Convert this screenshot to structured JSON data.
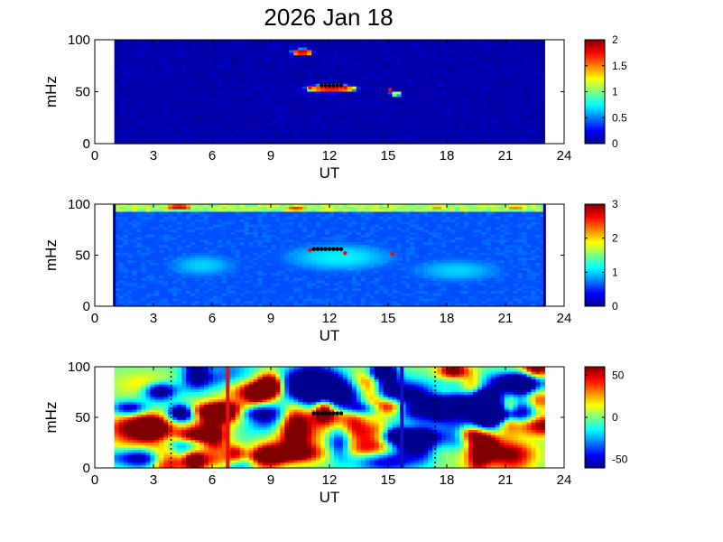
{
  "title": "2026 Jan 18",
  "colormap": [
    "#00008f",
    "#0000ff",
    "#0080ff",
    "#00ffff",
    "#80ff80",
    "#ffff00",
    "#ff8000",
    "#ff0000",
    "#800000"
  ],
  "chart_data": [
    {
      "type": "heatmap",
      "xlabel": "UT",
      "ylabel": "mHz",
      "xlim": [
        0,
        24
      ],
      "ylim": [
        0,
        100
      ],
      "xticks": [
        "0",
        "3",
        "6",
        "9",
        "12",
        "15",
        "18",
        "21",
        "24"
      ],
      "yticks": [
        "0",
        "50",
        "100"
      ],
      "data_range": [
        1,
        23
      ],
      "clim": [
        0,
        2
      ],
      "colorbar_ticks": [
        "0",
        "0.5",
        "1",
        "1.5",
        "2"
      ],
      "background_value": 0.05,
      "blobs": [
        {
          "x": 10.6,
          "y": 88,
          "rx": 0.5,
          "ry": 3,
          "value": 1.9
        },
        {
          "x": 12.1,
          "y": 53,
          "rx": 1.2,
          "ry": 3.5,
          "value": 1.8
        },
        {
          "x": 11.5,
          "y": 51,
          "rx": 0.6,
          "ry": 2,
          "value": 1.1
        },
        {
          "x": 15.4,
          "y": 48,
          "rx": 0.3,
          "ry": 2,
          "value": 1.2
        }
      ],
      "markers": {
        "black": {
          "x": [
            11.6,
            11.8,
            12.0,
            12.2,
            12.4,
            12.6
          ],
          "y": [
            56,
            56,
            56,
            56,
            56,
            56
          ]
        },
        "red": {
          "x": [
            11.0,
            12.8,
            15.1
          ],
          "y": [
            54,
            54,
            52
          ]
        }
      },
      "vlines": []
    },
    {
      "type": "heatmap",
      "xlabel": "UT",
      "ylabel": "mHz",
      "xlim": [
        0,
        24
      ],
      "ylim": [
        0,
        100
      ],
      "xticks": [
        "0",
        "3",
        "6",
        "9",
        "12",
        "15",
        "18",
        "21",
        "24"
      ],
      "yticks": [
        "0",
        "50",
        "100"
      ],
      "data_range": [
        1,
        23
      ],
      "clim": [
        0,
        3
      ],
      "colorbar_ticks": [
        "0",
        "1",
        "2",
        "3"
      ],
      "background_value": 0.6,
      "top_band": {
        "y_from": 92,
        "y_to": 100,
        "value": 1.6
      },
      "blobs": [
        {
          "x": 4.3,
          "y": 97,
          "rx": 0.7,
          "ry": 3,
          "value": 2.8
        },
        {
          "x": 10.3,
          "y": 96,
          "rx": 0.6,
          "ry": 3,
          "value": 2.5
        },
        {
          "x": 17.5,
          "y": 97,
          "rx": 0.5,
          "ry": 2,
          "value": 2.3
        },
        {
          "x": 21.5,
          "y": 97,
          "rx": 0.6,
          "ry": 2,
          "value": 2.4
        },
        {
          "x": 5.5,
          "y": 40,
          "rx": 1.5,
          "ry": 10,
          "value": 1.0
        },
        {
          "x": 12.5,
          "y": 48,
          "rx": 2.5,
          "ry": 12,
          "value": 1.1
        },
        {
          "x": 18.5,
          "y": 35,
          "rx": 2.0,
          "ry": 10,
          "value": 1.0
        }
      ],
      "markers": {
        "black": {
          "x": [
            11.2,
            11.4,
            11.6,
            11.8,
            12.0,
            12.2,
            12.4,
            12.6
          ],
          "y": [
            56,
            56,
            56,
            56,
            56,
            56,
            56,
            56
          ]
        },
        "red": {
          "x": [
            11.0,
            12.8,
            15.2
          ],
          "y": [
            55,
            52,
            51
          ]
        }
      },
      "vlines": [
        {
          "x": 1.0,
          "color": "#00008f",
          "width": 3
        },
        {
          "x": 23.0,
          "color": "#00008f",
          "width": 3
        }
      ]
    },
    {
      "type": "heatmap",
      "xlabel": "UT",
      "ylabel": "mHz",
      "xlim": [
        0,
        24
      ],
      "ylim": [
        0,
        100
      ],
      "xticks": [
        "0",
        "3",
        "6",
        "9",
        "12",
        "15",
        "18",
        "21",
        "24"
      ],
      "yticks": [
        "0",
        "50",
        "100"
      ],
      "data_range": [
        1,
        23
      ],
      "clim": [
        -60,
        60
      ],
      "colorbar_ticks": [
        "-50",
        "0",
        "50"
      ],
      "background_value": 0,
      "noise": {
        "amplitude": 60,
        "seed": 7
      },
      "markers": {
        "black": {
          "x": [
            11.2,
            11.4,
            11.6,
            11.8,
            12.0,
            12.2,
            12.4,
            12.6
          ],
          "y": [
            54,
            54,
            54,
            54,
            54,
            54,
            54,
            54
          ]
        },
        "red": {
          "x": [],
          "y": []
        }
      },
      "vlines": [
        {
          "x": 6.8,
          "color": "#e81010",
          "width": 4
        },
        {
          "x": 15.7,
          "color": "#1010c0",
          "width": 4
        },
        {
          "x": 3.9,
          "color": "#000000",
          "width": 1.5,
          "dash": "2,3"
        },
        {
          "x": 17.4,
          "color": "#000000",
          "width": 1.5,
          "dash": "2,3"
        }
      ]
    }
  ]
}
